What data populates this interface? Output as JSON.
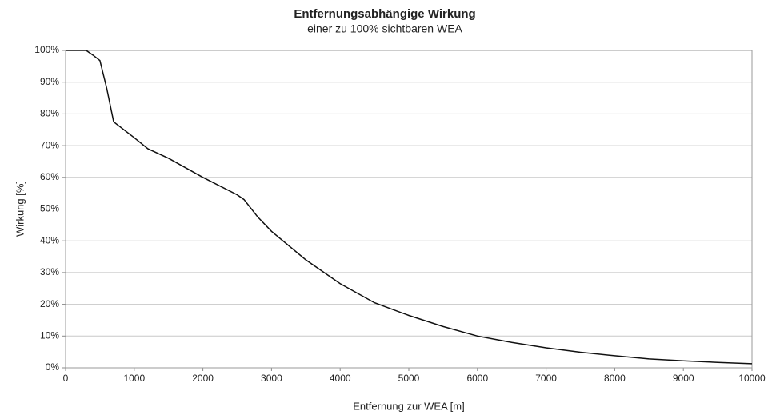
{
  "chart_data": {
    "type": "line",
    "title": "Entfernungsabhängige Wirkung",
    "subtitle": "einer zu 100% sichtbaren WEA",
    "x_label": "Entfernung zur WEA [m]",
    "y_label": "Wirkung [%]",
    "x": [
      0,
      300,
      400,
      500,
      600,
      700,
      1000,
      1200,
      1500,
      2000,
      2500,
      2600,
      2800,
      3000,
      3500,
      4000,
      4500,
      5000,
      5500,
      6000,
      6500,
      7000,
      7500,
      8000,
      8500,
      9000,
      9500,
      10000
    ],
    "values": [
      100,
      100,
      98.5,
      96.8,
      88,
      77.5,
      72.5,
      69,
      66,
      60,
      54.5,
      53,
      47.5,
      43,
      34,
      26.5,
      20.5,
      16.5,
      13,
      10,
      8,
      6.3,
      4.9,
      3.8,
      2.8,
      2.2,
      1.7,
      1.3
    ],
    "color": "#111111",
    "xlim": [
      0,
      10000
    ],
    "xticks": [
      0,
      1000,
      2000,
      3000,
      4000,
      5000,
      6000,
      7000,
      8000,
      9000,
      10000
    ],
    "ylim": [
      0,
      100
    ],
    "yticks": [
      {
        "value": 0,
        "label": "0%"
      },
      {
        "value": 10,
        "label": "10%"
      },
      {
        "value": 20,
        "label": "20%"
      },
      {
        "value": 30,
        "label": "30%"
      },
      {
        "value": 40,
        "label": "40%"
      },
      {
        "value": 50,
        "label": "50%"
      },
      {
        "value": 60,
        "label": "60%"
      },
      {
        "value": 70,
        "label": "70%"
      },
      {
        "value": 80,
        "label": "80%"
      },
      {
        "value": 90,
        "label": "90%"
      },
      {
        "value": 100,
        "label": "100%"
      }
    ],
    "grid": true
  }
}
